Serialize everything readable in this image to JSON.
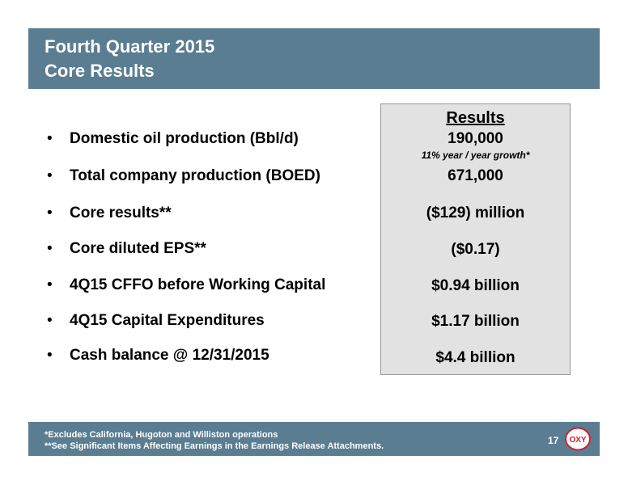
{
  "title": {
    "line1": "Fourth Quarter 2015",
    "line2": "Core Results"
  },
  "results": {
    "heading": "Results",
    "growth_note": "11% year / year growth*"
  },
  "items": [
    {
      "label": "Domestic oil production (Bbl/d)",
      "value": "190,000"
    },
    {
      "label": "Total company production (BOED)",
      "value": "671,000"
    },
    {
      "label": "Core results**",
      "value": "($129) million"
    },
    {
      "label": "Core diluted EPS**",
      "value": "($0.17)"
    },
    {
      "label": "4Q15 CFFO before Working Capital",
      "value": "$0.94 billion"
    },
    {
      "label": "4Q15 Capital Expenditures",
      "value": "$1.17 billion"
    },
    {
      "label": "Cash balance @ 12/31/2015",
      "value": "$4.4 billion"
    }
  ],
  "footer": {
    "note1": "*Excludes California, Hugoton and Williston operations",
    "note2": "**See Significant Items Affecting Earnings in the Earnings Release Attachments.",
    "page_number": "17",
    "logo_text": "OXY"
  },
  "colors": {
    "bar": "#5a7d91",
    "results_bg": "#e2e2e2",
    "logo_red": "#d0202f"
  },
  "icons": {
    "logo": "oxy-logo-icon"
  }
}
